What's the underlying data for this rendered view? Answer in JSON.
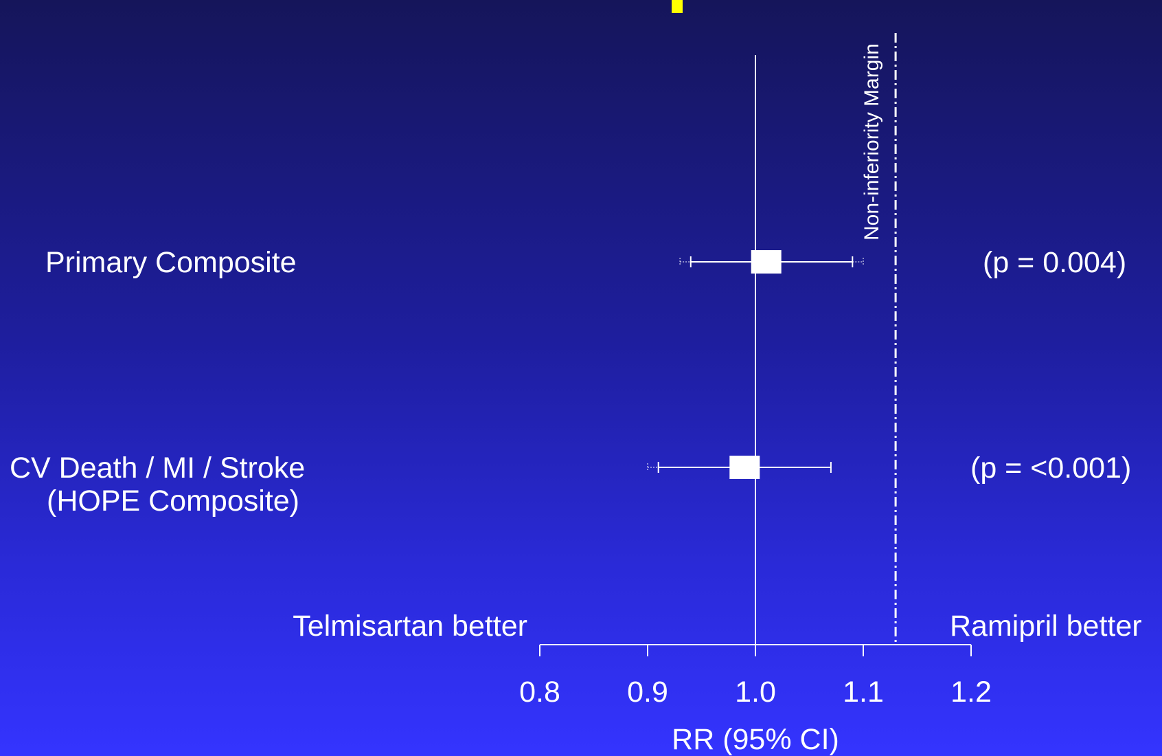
{
  "colors": {
    "background_top": "#15155a",
    "background_bottom": "#3434ff",
    "foreground": "#ffffff",
    "title_marker": "#ffff00"
  },
  "chart_data": {
    "type": "forest",
    "xlabel": "RR (95% CI)",
    "xlim": [
      0.8,
      1.2
    ],
    "xticks": [
      {
        "value": 0.8,
        "label": "0.8"
      },
      {
        "value": 0.9,
        "label": "0.9"
      },
      {
        "value": 1.0,
        "label": "1.0"
      },
      {
        "value": 1.1,
        "label": "1.1"
      },
      {
        "value": 1.2,
        "label": "1.2"
      }
    ],
    "reference_line": 1.0,
    "non_inferiority_margin": {
      "value": 1.13,
      "label": "Non-inferiority Margin",
      "style": "dash-dot"
    },
    "direction_labels": {
      "left": "Telmisartan better",
      "right": "Ramipril better"
    },
    "rows": [
      {
        "label_lines": [
          "Primary Composite"
        ],
        "estimate": 1.01,
        "ci_low": 0.94,
        "ci_high": 1.09,
        "outer_low": 0.93,
        "outer_high": 1.1,
        "p_text": "(p = 0.004)"
      },
      {
        "label_lines": [
          "CV Death / MI / Stroke",
          "(HOPE Composite)"
        ],
        "estimate": 0.99,
        "ci_low": 0.91,
        "ci_high": 1.07,
        "outer_low": 0.9,
        "outer_high": null,
        "p_text": "(p = <0.001)"
      }
    ],
    "grid": false,
    "legend": "none"
  }
}
